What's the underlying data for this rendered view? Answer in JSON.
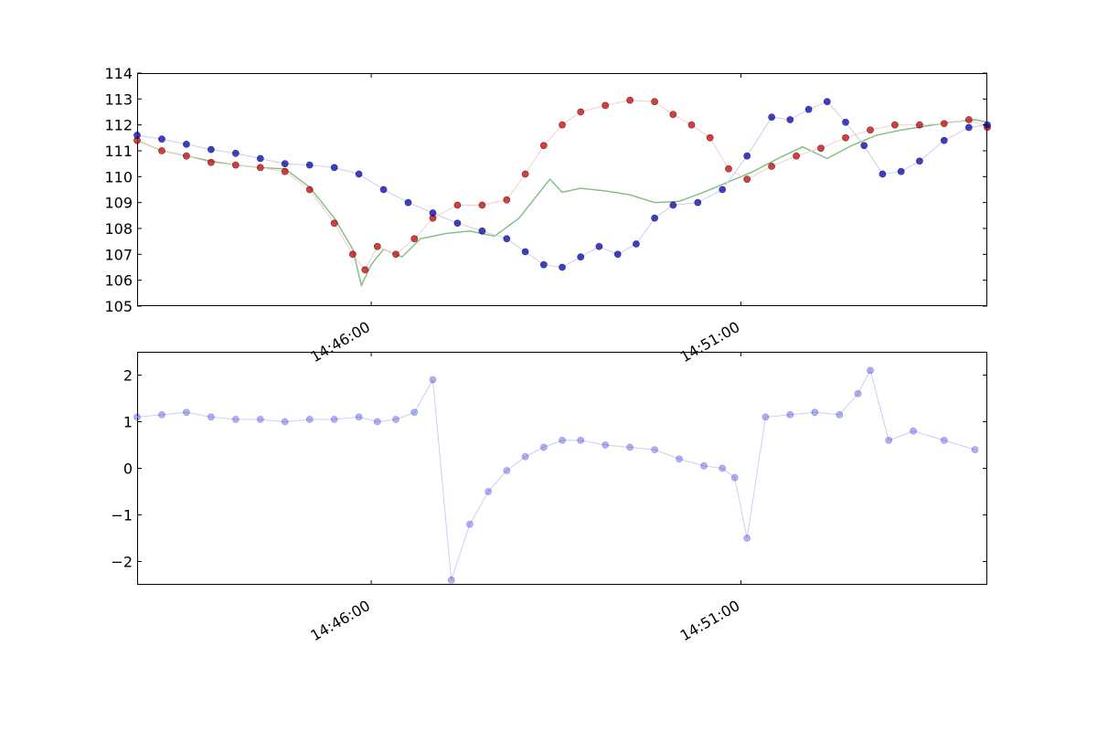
{
  "chart_data": [
    {
      "type": "scatter",
      "title": "",
      "xlabel": "",
      "ylabel": "",
      "x_domain": [
        "14:42:50",
        "14:54:20"
      ],
      "ylim": [
        105,
        114
      ],
      "yticks": [
        105,
        106,
        107,
        108,
        109,
        110,
        111,
        112,
        113,
        114
      ],
      "xticks": [
        "14:46:00",
        "14:51:00"
      ],
      "grid": false,
      "legend": "none",
      "series": [
        {
          "kind": "line",
          "color": "#3a9a3a",
          "points": [
            [
              "14:42:50",
              111.4
            ],
            [
              "14:43:10",
              111.0
            ],
            [
              "14:43:30",
              110.8
            ],
            [
              "14:43:50",
              110.6
            ],
            [
              "14:44:10",
              110.45
            ],
            [
              "14:44:30",
              110.35
            ],
            [
              "14:44:50",
              110.3
            ],
            [
              "14:45:10",
              109.6
            ],
            [
              "14:45:30",
              108.4
            ],
            [
              "14:45:45",
              107.2
            ],
            [
              "14:45:52",
              105.8
            ],
            [
              "14:46:00",
              106.6
            ],
            [
              "14:46:10",
              107.2
            ],
            [
              "14:46:25",
              106.9
            ],
            [
              "14:46:40",
              107.6
            ],
            [
              "14:47:00",
              107.8
            ],
            [
              "14:47:20",
              107.9
            ],
            [
              "14:47:40",
              107.7
            ],
            [
              "14:48:00",
              108.4
            ],
            [
              "14:48:15",
              109.3
            ],
            [
              "14:48:25",
              109.9
            ],
            [
              "14:48:35",
              109.4
            ],
            [
              "14:48:50",
              109.55
            ],
            [
              "14:49:10",
              109.45
            ],
            [
              "14:49:30",
              109.3
            ],
            [
              "14:49:50",
              109.0
            ],
            [
              "14:50:10",
              109.05
            ],
            [
              "14:50:30",
              109.4
            ],
            [
              "14:50:50",
              109.8
            ],
            [
              "14:51:10",
              110.2
            ],
            [
              "14:51:30",
              110.7
            ],
            [
              "14:51:50",
              111.15
            ],
            [
              "14:52:10",
              110.7
            ],
            [
              "14:52:30",
              111.2
            ],
            [
              "14:52:50",
              111.6
            ],
            [
              "14:53:10",
              111.8
            ],
            [
              "14:53:30",
              111.95
            ],
            [
              "14:53:50",
              112.1
            ],
            [
              "14:54:10",
              112.2
            ],
            [
              "14:54:20",
              112.1
            ]
          ]
        },
        {
          "kind": "markers",
          "color": "#cc0000",
          "points": [
            [
              "14:42:50",
              111.4
            ],
            [
              "14:43:10",
              111.0
            ],
            [
              "14:43:30",
              110.8
            ],
            [
              "14:43:50",
              110.55
            ],
            [
              "14:44:10",
              110.45
            ],
            [
              "14:44:30",
              110.35
            ],
            [
              "14:44:50",
              110.2
            ],
            [
              "14:45:10",
              109.5
            ],
            [
              "14:45:30",
              108.2
            ],
            [
              "14:45:45",
              107.0
            ],
            [
              "14:45:55",
              106.4
            ],
            [
              "14:46:05",
              107.3
            ],
            [
              "14:46:20",
              107.0
            ],
            [
              "14:46:35",
              107.6
            ],
            [
              "14:46:50",
              108.4
            ],
            [
              "14:47:10",
              108.9
            ],
            [
              "14:47:30",
              108.9
            ],
            [
              "14:47:50",
              109.1
            ],
            [
              "14:48:05",
              110.1
            ],
            [
              "14:48:20",
              111.2
            ],
            [
              "14:48:35",
              112.0
            ],
            [
              "14:48:50",
              112.5
            ],
            [
              "14:49:10",
              112.75
            ],
            [
              "14:49:30",
              112.95
            ],
            [
              "14:49:50",
              112.9
            ],
            [
              "14:50:05",
              112.4
            ],
            [
              "14:50:20",
              112.0
            ],
            [
              "14:50:35",
              111.5
            ],
            [
              "14:50:50",
              110.3
            ],
            [
              "14:51:05",
              109.9
            ],
            [
              "14:51:25",
              110.4
            ],
            [
              "14:51:45",
              110.8
            ],
            [
              "14:52:05",
              111.1
            ],
            [
              "14:52:25",
              111.5
            ],
            [
              "14:52:45",
              111.8
            ],
            [
              "14:53:05",
              112.0
            ],
            [
              "14:53:25",
              112.0
            ],
            [
              "14:53:45",
              112.05
            ],
            [
              "14:54:05",
              112.2
            ],
            [
              "14:54:20",
              111.9
            ]
          ]
        },
        {
          "kind": "markers",
          "color": "#0000bb",
          "points": [
            [
              "14:42:50",
              111.6
            ],
            [
              "14:43:10",
              111.45
            ],
            [
              "14:43:30",
              111.25
            ],
            [
              "14:43:50",
              111.05
            ],
            [
              "14:44:10",
              110.9
            ],
            [
              "14:44:30",
              110.7
            ],
            [
              "14:44:50",
              110.5
            ],
            [
              "14:45:10",
              110.45
            ],
            [
              "14:45:30",
              110.35
            ],
            [
              "14:45:50",
              110.1
            ],
            [
              "14:46:10",
              109.5
            ],
            [
              "14:46:30",
              109.0
            ],
            [
              "14:46:50",
              108.6
            ],
            [
              "14:47:10",
              108.2
            ],
            [
              "14:47:30",
              107.9
            ],
            [
              "14:47:50",
              107.6
            ],
            [
              "14:48:05",
              107.1
            ],
            [
              "14:48:20",
              106.6
            ],
            [
              "14:48:35",
              106.5
            ],
            [
              "14:48:50",
              106.9
            ],
            [
              "14:49:05",
              107.3
            ],
            [
              "14:49:20",
              107.0
            ],
            [
              "14:49:35",
              107.4
            ],
            [
              "14:49:50",
              108.4
            ],
            [
              "14:50:05",
              108.9
            ],
            [
              "14:50:25",
              109.0
            ],
            [
              "14:50:45",
              109.5
            ],
            [
              "14:51:05",
              110.8
            ],
            [
              "14:51:25",
              112.3
            ],
            [
              "14:51:40",
              112.2
            ],
            [
              "14:51:55",
              112.6
            ],
            [
              "14:52:10",
              112.9
            ],
            [
              "14:52:25",
              112.1
            ],
            [
              "14:52:40",
              111.2
            ],
            [
              "14:52:55",
              110.1
            ],
            [
              "14:53:10",
              110.2
            ],
            [
              "14:53:25",
              110.6
            ],
            [
              "14:53:45",
              111.4
            ],
            [
              "14:54:05",
              111.9
            ],
            [
              "14:54:20",
              112.0
            ]
          ]
        }
      ]
    },
    {
      "type": "scatter",
      "title": "",
      "xlabel": "",
      "ylabel": "",
      "x_domain": [
        "14:42:50",
        "14:54:20"
      ],
      "ylim": [
        -2.5,
        2.5
      ],
      "yticks": [
        -2,
        -1,
        0,
        1,
        2
      ],
      "ytick_labels": [
        "−2",
        "−1",
        "0",
        "1",
        "2"
      ],
      "xticks": [
        "14:46:00",
        "14:51:00"
      ],
      "grid": false,
      "legend": "none",
      "series": [
        {
          "kind": "markers",
          "color": "#0000cc",
          "points": [
            [
              "14:42:50",
              1.1
            ],
            [
              "14:43:10",
              1.15
            ],
            [
              "14:43:30",
              1.2
            ],
            [
              "14:43:50",
              1.1
            ],
            [
              "14:44:10",
              1.05
            ],
            [
              "14:44:30",
              1.05
            ],
            [
              "14:44:50",
              1.0
            ],
            [
              "14:45:10",
              1.05
            ],
            [
              "14:45:30",
              1.05
            ],
            [
              "14:45:50",
              1.1
            ],
            [
              "14:46:05",
              1.0
            ],
            [
              "14:46:20",
              1.05
            ],
            [
              "14:46:35",
              1.2
            ],
            [
              "14:46:50",
              1.9
            ],
            [
              "14:47:05",
              -2.4
            ],
            [
              "14:47:20",
              -1.2
            ],
            [
              "14:47:35",
              -0.5
            ],
            [
              "14:47:50",
              -0.05
            ],
            [
              "14:48:05",
              0.25
            ],
            [
              "14:48:20",
              0.45
            ],
            [
              "14:48:35",
              0.6
            ],
            [
              "14:48:50",
              0.6
            ],
            [
              "14:49:10",
              0.5
            ],
            [
              "14:49:30",
              0.45
            ],
            [
              "14:49:50",
              0.4
            ],
            [
              "14:50:10",
              0.2
            ],
            [
              "14:50:30",
              0.05
            ],
            [
              "14:50:45",
              0.0
            ],
            [
              "14:50:55",
              -0.2
            ],
            [
              "14:51:05",
              -1.5
            ],
            [
              "14:51:20",
              1.1
            ],
            [
              "14:51:40",
              1.15
            ],
            [
              "14:52:00",
              1.2
            ],
            [
              "14:52:20",
              1.15
            ],
            [
              "14:52:35",
              1.6
            ],
            [
              "14:52:45",
              2.1
            ],
            [
              "14:53:00",
              0.6
            ],
            [
              "14:53:20",
              0.8
            ],
            [
              "14:53:45",
              0.6
            ],
            [
              "14:54:10",
              0.4
            ]
          ]
        }
      ]
    }
  ]
}
